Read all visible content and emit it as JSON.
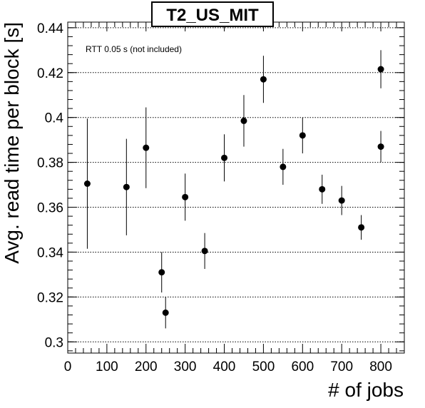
{
  "chart_data": {
    "type": "scatter",
    "title": "T2_US_MIT",
    "annotation": "RTT 0.05 s (not included)",
    "xlabel": "# of jobs",
    "ylabel": "Avg. read time per block [s]",
    "xlim": [
      0,
      860
    ],
    "ylim": [
      0.295,
      0.4425
    ],
    "x_ticks": [
      0,
      100,
      200,
      300,
      400,
      500,
      600,
      700,
      800
    ],
    "x_tick_labels": [
      "0",
      "100",
      "200",
      "300",
      "400",
      "500",
      "600",
      "700",
      "800"
    ],
    "y_ticks": [
      0.3,
      0.32,
      0.34,
      0.36,
      0.38,
      0.4,
      0.42,
      0.44
    ],
    "y_tick_labels": [
      "0.3",
      "0.32",
      "0.34",
      "0.36",
      "0.38",
      "0.4",
      "0.42",
      "0.44"
    ],
    "grid": "horizontal dotted",
    "series": [
      {
        "x": [
          50,
          150,
          200,
          240,
          250,
          300,
          350,
          400,
          450,
          500,
          550,
          600,
          650,
          700,
          750,
          800,
          800
        ],
        "y": [
          0.3705,
          0.369,
          0.3865,
          0.331,
          0.313,
          0.3645,
          0.3405,
          0.382,
          0.3985,
          0.417,
          0.378,
          0.392,
          0.368,
          0.363,
          0.351,
          0.387,
          0.4215
        ],
        "yerr": [
          0.029,
          0.0215,
          0.018,
          0.009,
          0.007,
          0.0105,
          0.008,
          0.0105,
          0.0115,
          0.0105,
          0.008,
          0.008,
          0.0065,
          0.0065,
          0.0055,
          0.007,
          0.0085
        ]
      }
    ]
  }
}
